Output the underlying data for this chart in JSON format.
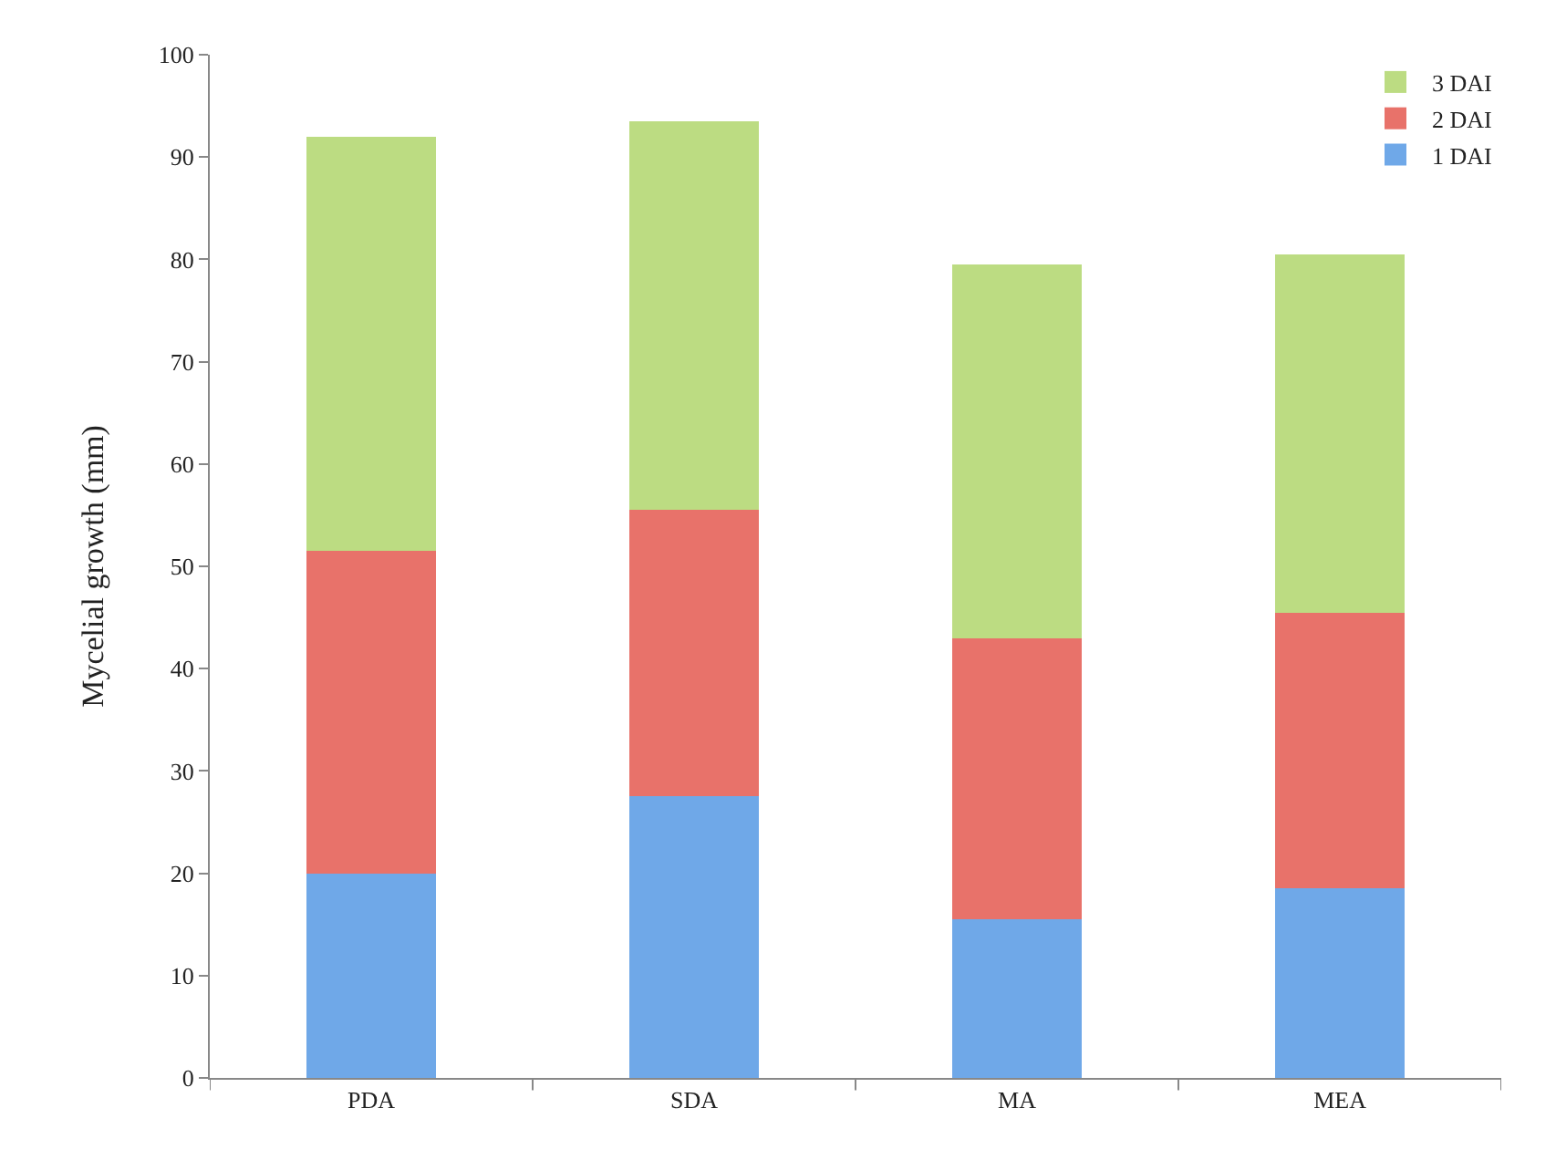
{
  "chart_data": {
    "type": "bar",
    "stacked": true,
    "ylabel": "Mycelial growth (mm)",
    "categories": [
      "PDA",
      "SDA",
      "MA",
      "MEA"
    ],
    "series": [
      {
        "name": "1 DAI",
        "color": "#6fa8e8",
        "values": [
          20,
          27.5,
          15.5,
          18.5
        ]
      },
      {
        "name": "2 DAI",
        "color": "#e8726a",
        "values": [
          31.5,
          28,
          27.5,
          27
        ]
      },
      {
        "name": "3 DAI",
        "color": "#bcdc82",
        "values": [
          40.5,
          38,
          36.5,
          35
        ]
      }
    ],
    "ylim": [
      0,
      100
    ],
    "yticks": [
      0,
      10,
      20,
      30,
      40,
      50,
      60,
      70,
      80,
      90,
      100
    ],
    "grid": false,
    "legend": "top right"
  }
}
